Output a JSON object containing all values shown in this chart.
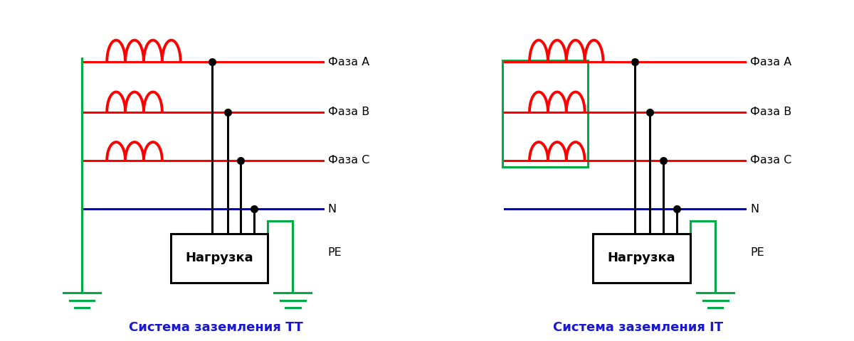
{
  "title_tt": "Система заземления ТТ",
  "title_it": "Система заземления IT",
  "label_faza_a": "Фаза А",
  "label_faza_b": "Фаза В",
  "label_faza_c": "Фаза С",
  "label_n": "N",
  "label_pe": "PE",
  "label_load": "Нагрузка",
  "color_red": "#ff0000",
  "color_blue": "#0000cc",
  "color_green": "#00aa44",
  "color_black": "#000000",
  "color_title": "#1a1acc",
  "bg_color": "#ffffff",
  "n_humps_a": 4,
  "n_humps_b": 3,
  "n_humps_c": 3
}
